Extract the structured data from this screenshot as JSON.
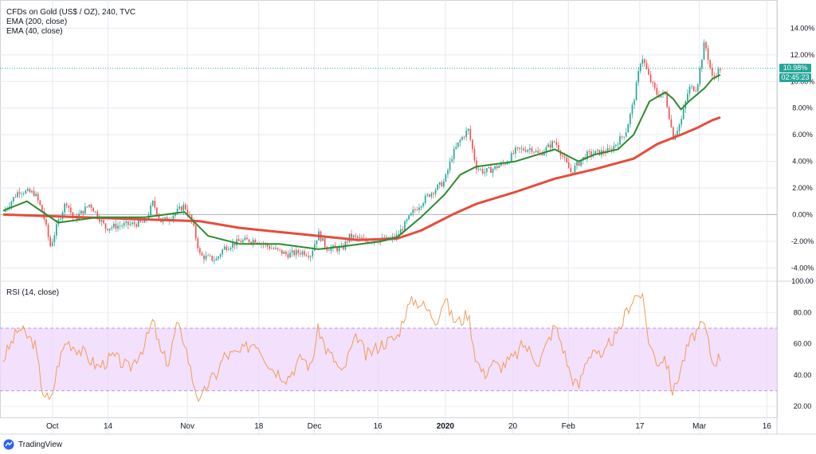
{
  "header": {
    "title": "CFDs on Gold (US$ / OZ), 240, TVC",
    "studies": [
      "EMA (200, close)",
      "EMA (40, close)"
    ]
  },
  "rsi_panel": {
    "label": "RSI (14, close)"
  },
  "price_tag": {
    "value": "10.98%",
    "countdown": "02:45:23",
    "color": "#26a69a"
  },
  "footer": {
    "brand": "TradingView"
  },
  "colors": {
    "up": "#26a69a",
    "down": "#ef5350",
    "ema200": "#e74c3c",
    "ema40": "#2e8b2e",
    "rsi": "#f39c5a",
    "rsi_band": "#eed6fb",
    "grid": "#e6e9f0",
    "axis_text": "#131722"
  },
  "chart_data": [
    {
      "type": "candlestick",
      "title": "CFDs on Gold (US$ / OZ), 240, TVC",
      "x_tick_labels": [
        "Oct",
        "14",
        "Nov",
        "18",
        "Dec",
        "16",
        "2020",
        "20",
        "Feb",
        "17",
        "Mar",
        "16"
      ],
      "y_tick_labels": [
        "14.00%",
        "12.00%",
        "10.00%",
        "8.00%",
        "6.00%",
        "4.00%",
        "2.00%",
        "0.00%",
        "-2.00%",
        "-4.00%"
      ],
      "y_ticks": [
        14,
        12,
        10,
        8,
        6,
        4,
        2,
        0,
        -2,
        -4
      ],
      "ylim": [
        -5,
        16
      ],
      "baseline": 0,
      "last_value": 10.98,
      "price_path": [
        [
          0,
          0.2
        ],
        [
          2,
          1.8
        ],
        [
          4,
          1.6
        ],
        [
          5,
          0.2
        ],
        [
          6,
          -2.4
        ],
        [
          7,
          -0.5
        ],
        [
          8,
          1.0
        ],
        [
          9,
          -0.4
        ],
        [
          11,
          0.8
        ],
        [
          13,
          -1.0
        ],
        [
          15,
          -0.8
        ],
        [
          18,
          -0.6
        ],
        [
          19,
          0.9
        ],
        [
          20,
          -0.5
        ],
        [
          21,
          -0.3
        ],
        [
          23,
          0.7
        ],
        [
          24,
          -0.6
        ],
        [
          25,
          -3.1
        ],
        [
          27,
          -3.4
        ],
        [
          28,
          -2.5
        ],
        [
          30,
          -2.0
        ],
        [
          32,
          -1.9
        ],
        [
          34,
          -2.5
        ],
        [
          36,
          -3.0
        ],
        [
          38,
          -2.8
        ],
        [
          39,
          -3.0
        ],
        [
          40,
          -1.4
        ],
        [
          41,
          -2.5
        ],
        [
          43,
          -2.6
        ],
        [
          44,
          -1.6
        ],
        [
          46,
          -2.0
        ],
        [
          47,
          -1.9
        ],
        [
          49,
          -1.9
        ],
        [
          50,
          -1.6
        ],
        [
          52,
          0.2
        ],
        [
          54,
          1.5
        ],
        [
          56,
          2.5
        ],
        [
          57,
          4.5
        ],
        [
          58,
          5.6
        ],
        [
          59,
          6.4
        ],
        [
          60,
          3.6
        ],
        [
          61,
          3.2
        ],
        [
          62,
          3.4
        ],
        [
          64,
          4.0
        ],
        [
          65,
          4.8
        ],
        [
          67,
          5.0
        ],
        [
          68,
          4.5
        ],
        [
          70,
          5.5
        ],
        [
          72,
          3.2
        ],
        [
          74,
          4.5
        ],
        [
          75,
          4.6
        ],
        [
          77,
          4.8
        ],
        [
          79,
          6.2
        ],
        [
          80,
          8.5
        ],
        [
          81,
          12.0
        ],
        [
          82,
          10.2
        ],
        [
          83,
          9.0
        ],
        [
          84,
          9.0
        ],
        [
          85,
          5.8
        ],
        [
          86,
          7.0
        ],
        [
          87,
          9.5
        ],
        [
          88,
          9.5
        ],
        [
          89,
          13.0
        ],
        [
          90,
          10.2
        ],
        [
          91,
          10.98
        ]
      ],
      "series": [
        {
          "name": "EMA (200, close)",
          "points": [
            [
              0,
              0.0
            ],
            [
              10,
              -0.2
            ],
            [
              20,
              -0.4
            ],
            [
              25,
              -0.5
            ],
            [
              30,
              -1.0
            ],
            [
              35,
              -1.3
            ],
            [
              40,
              -1.6
            ],
            [
              45,
              -1.9
            ],
            [
              50,
              -1.8
            ],
            [
              53,
              -1.2
            ],
            [
              57,
              0.0
            ],
            [
              60,
              0.8
            ],
            [
              65,
              1.7
            ],
            [
              70,
              2.7
            ],
            [
              75,
              3.4
            ],
            [
              80,
              4.2
            ],
            [
              83,
              5.3
            ],
            [
              86,
              6.0
            ],
            [
              88,
              6.5
            ],
            [
              90,
              7.1
            ],
            [
              91,
              7.3
            ]
          ]
        },
        {
          "name": "EMA (40, close)",
          "points": [
            [
              0,
              0.3
            ],
            [
              3,
              1.0
            ],
            [
              7,
              -0.6
            ],
            [
              12,
              -0.2
            ],
            [
              18,
              -0.2
            ],
            [
              23,
              0.2
            ],
            [
              26,
              -1.6
            ],
            [
              30,
              -2.2
            ],
            [
              35,
              -2.2
            ],
            [
              40,
              -2.6
            ],
            [
              43,
              -2.4
            ],
            [
              48,
              -2.0
            ],
            [
              50,
              -1.7
            ],
            [
              53,
              -0.2
            ],
            [
              56,
              1.5
            ],
            [
              58,
              3.0
            ],
            [
              60,
              3.6
            ],
            [
              65,
              4.0
            ],
            [
              70,
              4.9
            ],
            [
              73,
              4.0
            ],
            [
              75,
              4.5
            ],
            [
              78,
              4.9
            ],
            [
              80,
              6.0
            ],
            [
              82,
              8.5
            ],
            [
              84,
              9.2
            ],
            [
              85,
              8.7
            ],
            [
              86,
              7.9
            ],
            [
              87,
              8.5
            ],
            [
              89,
              9.5
            ],
            [
              90,
              10.2
            ],
            [
              91,
              10.5
            ]
          ]
        }
      ]
    },
    {
      "type": "line",
      "title": "RSI (14, close)",
      "y_tick_labels": [
        "100.00",
        "80.00",
        "60.00",
        "40.00",
        "20.00"
      ],
      "y_ticks": [
        100,
        80,
        60,
        40,
        20
      ],
      "ylim": [
        13,
        100
      ],
      "band": [
        30,
        70
      ],
      "series": [
        {
          "name": "RSI (14, close)",
          "points": [
            [
              0,
              50
            ],
            [
              2,
              70
            ],
            [
              4,
              60
            ],
            [
              5,
              30
            ],
            [
              6,
              22
            ],
            [
              7,
              48
            ],
            [
              8,
              62
            ],
            [
              10,
              55
            ],
            [
              12,
              45
            ],
            [
              14,
              52
            ],
            [
              16,
              44
            ],
            [
              18,
              60
            ],
            [
              19,
              75
            ],
            [
              20,
              54
            ],
            [
              21,
              48
            ],
            [
              22,
              72
            ],
            [
              23,
              62
            ],
            [
              24,
              38
            ],
            [
              25,
              22
            ],
            [
              26,
              35
            ],
            [
              27,
              40
            ],
            [
              28,
              52
            ],
            [
              30,
              54
            ],
            [
              32,
              62
            ],
            [
              34,
              45
            ],
            [
              36,
              38
            ],
            [
              38,
              52
            ],
            [
              39,
              44
            ],
            [
              40,
              70
            ],
            [
              41,
              56
            ],
            [
              42,
              50
            ],
            [
              43,
              40
            ],
            [
              44,
              55
            ],
            [
              45,
              65
            ],
            [
              46,
              52
            ],
            [
              47,
              56
            ],
            [
              48,
              60
            ],
            [
              50,
              64
            ],
            [
              51,
              80
            ],
            [
              52,
              88
            ],
            [
              53,
              86
            ],
            [
              55,
              75
            ],
            [
              56,
              90
            ],
            [
              57,
              76
            ],
            [
              58,
              74
            ],
            [
              59,
              80
            ],
            [
              60,
              50
            ],
            [
              61,
              40
            ],
            [
              62,
              48
            ],
            [
              63,
              45
            ],
            [
              65,
              52
            ],
            [
              66,
              60
            ],
            [
              68,
              48
            ],
            [
              70,
              72
            ],
            [
              71,
              58
            ],
            [
              72,
              40
            ],
            [
              73,
              32
            ],
            [
              74,
              50
            ],
            [
              75,
              58
            ],
            [
              76,
              48
            ],
            [
              77,
              62
            ],
            [
              78,
              65
            ],
            [
              79,
              80
            ],
            [
              80,
              90
            ],
            [
              81,
              92
            ],
            [
              82,
              60
            ],
            [
              83,
              48
            ],
            [
              84,
              52
            ],
            [
              85,
              28
            ],
            [
              86,
              45
            ],
            [
              87,
              60
            ],
            [
              88,
              68
            ],
            [
              89,
              72
            ],
            [
              90,
              48
            ],
            [
              91,
              52
            ]
          ]
        }
      ]
    }
  ]
}
